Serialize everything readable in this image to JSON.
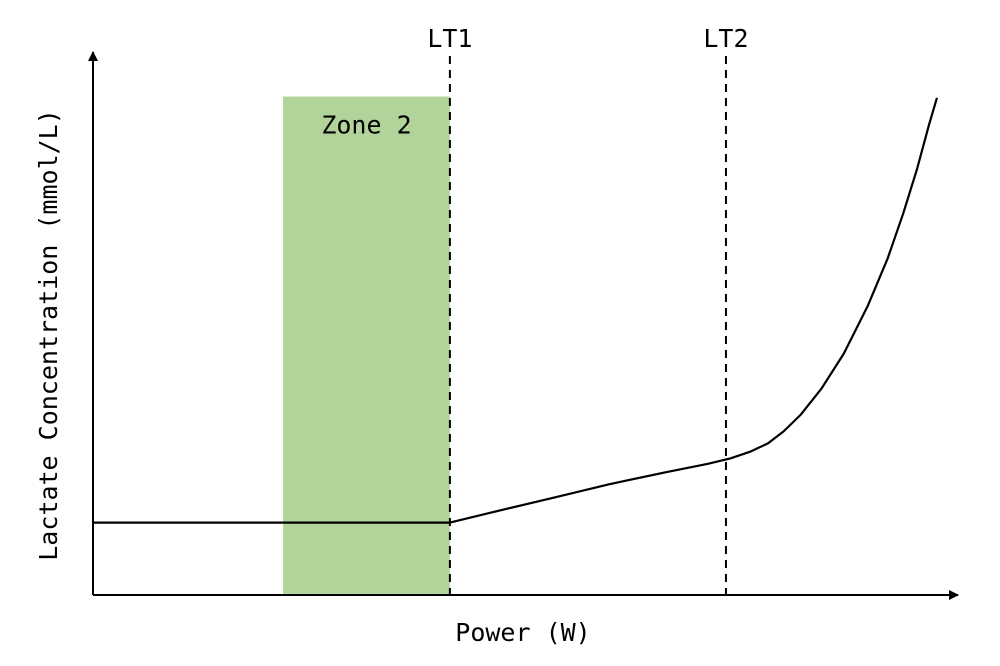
{
  "chart_data": {
    "type": "line",
    "title": "",
    "xlabel": "Power (W)",
    "ylabel": "Lactate Concentration (mmol/L)",
    "axes_ticks_shown": false,
    "grid": false,
    "xlim": [
      0,
      100
    ],
    "ylim": [
      0,
      100
    ],
    "series": [
      {
        "color": "#000000",
        "points": [
          {
            "x": 0,
            "y": 13.4
          },
          {
            "x": 41.5,
            "y": 13.4
          },
          {
            "x": 46.9,
            "y": 15.5
          },
          {
            "x": 53.5,
            "y": 18.0
          },
          {
            "x": 60.0,
            "y": 20.5
          },
          {
            "x": 66.5,
            "y": 22.7
          },
          {
            "x": 71.5,
            "y": 24.3
          },
          {
            "x": 74.1,
            "y": 25.3
          },
          {
            "x": 76.5,
            "y": 26.6
          },
          {
            "x": 78.5,
            "y": 28.1
          },
          {
            "x": 80.3,
            "y": 30.3
          },
          {
            "x": 82.3,
            "y": 33.4
          },
          {
            "x": 84.7,
            "y": 38.2
          },
          {
            "x": 87.3,
            "y": 44.7
          },
          {
            "x": 90.1,
            "y": 53.6
          },
          {
            "x": 92.4,
            "y": 62.3
          },
          {
            "x": 94.2,
            "y": 70.6
          },
          {
            "x": 95.8,
            "y": 78.8
          },
          {
            "x": 97.2,
            "y": 87.0
          },
          {
            "x": 98.1,
            "y": 91.9
          }
        ]
      }
    ],
    "thresholds": [
      {
        "label": "LT1",
        "x": 41.5,
        "style": "dashed",
        "color": "#000000"
      },
      {
        "label": "LT2",
        "x": 73.6,
        "style": "dashed",
        "color": "#000000"
      }
    ],
    "shaded_regions": [
      {
        "label": "Zone 2",
        "x_start": 22.1,
        "x_end": 41.5,
        "y_end": 92.3,
        "color": "#b2d39a"
      }
    ]
  }
}
